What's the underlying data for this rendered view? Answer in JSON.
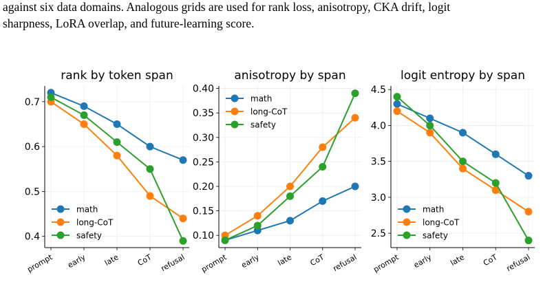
{
  "text": [
    "against six data domains.  Analogous grids are used for rank loss, anisotropy, CKA drift, logit",
    "sharpness, LoRA overlap, and future-learning score."
  ],
  "chart_data": [
    {
      "type": "line",
      "title": "rank by token span",
      "categories": [
        "prompt",
        "early",
        "late",
        "CoT",
        "refusal"
      ],
      "series": [
        {
          "name": "math",
          "color": "#1f77b4",
          "values": [
            0.72,
            0.69,
            0.65,
            0.6,
            0.57
          ]
        },
        {
          "name": "long-CoT",
          "color": "#ff7f0e",
          "values": [
            0.7,
            0.65,
            0.58,
            0.49,
            0.44
          ]
        },
        {
          "name": "safety",
          "color": "#2ca02c",
          "values": [
            0.71,
            0.67,
            0.61,
            0.55,
            0.39
          ]
        }
      ],
      "ylim": [
        0.375,
        0.735
      ],
      "yticks": [
        0.4,
        0.5,
        0.6,
        0.7
      ],
      "grid": true,
      "legend": "lower left"
    },
    {
      "type": "line",
      "title": "anisotropy by span",
      "categories": [
        "prompt",
        "early",
        "late",
        "CoT",
        "refusal"
      ],
      "series": [
        {
          "name": "math",
          "color": "#1f77b4",
          "values": [
            0.09,
            0.11,
            0.13,
            0.17,
            0.2
          ]
        },
        {
          "name": "long-CoT",
          "color": "#ff7f0e",
          "values": [
            0.1,
            0.14,
            0.2,
            0.28,
            0.34
          ]
        },
        {
          "name": "safety",
          "color": "#2ca02c",
          "values": [
            0.09,
            0.12,
            0.18,
            0.24,
            0.39
          ]
        }
      ],
      "ylim": [
        0.075,
        0.405
      ],
      "yticks": [
        {
          "value": 0.1,
          "label": "0.10"
        },
        {
          "value": 0.15,
          "label": "0.15"
        },
        {
          "value": 0.2,
          "label": "0.20"
        },
        {
          "value": 0.25,
          "label": "0.25"
        },
        {
          "value": 0.3,
          "label": "0.30"
        },
        {
          "value": 0.35,
          "label": "0.35"
        },
        {
          "value": 0.4,
          "label": "0.40"
        }
      ],
      "grid": true,
      "legend": "upper left"
    },
    {
      "type": "line",
      "title": "logit entropy by span",
      "categories": [
        "prompt",
        "early",
        "late",
        "CoT",
        "refusal"
      ],
      "series": [
        {
          "name": "math",
          "color": "#1f77b4",
          "values": [
            4.3,
            4.1,
            3.9,
            3.6,
            3.3
          ]
        },
        {
          "name": "long-CoT",
          "color": "#ff7f0e",
          "values": [
            4.2,
            3.9,
            3.4,
            3.1,
            2.8
          ]
        },
        {
          "name": "safety",
          "color": "#2ca02c",
          "values": [
            4.4,
            4.0,
            3.5,
            3.2,
            2.4
          ]
        }
      ],
      "ylim": [
        2.3,
        4.55
      ],
      "yticks": [
        2.5,
        {
          "value": 3,
          "label": "3.0"
        },
        3.5,
        {
          "value": 4,
          "label": "4.0"
        },
        4.5
      ],
      "grid": true,
      "legend": "lower left"
    }
  ]
}
